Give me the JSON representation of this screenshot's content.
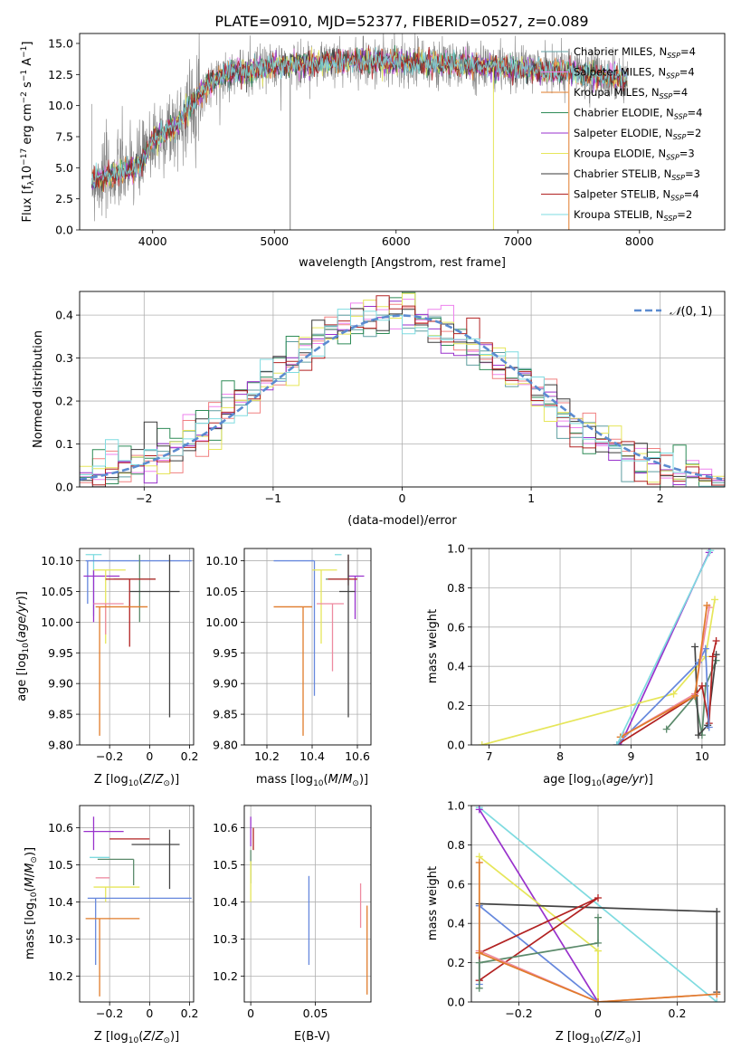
{
  "figure_title": "PLATE=0910, MJD=52377, FIBERID=0527, z=0.089",
  "palette": {
    "cm": "#5f9ea0",
    "sm": "#ee82ee",
    "km": "#f08080",
    "ce": "#2e8b57",
    "se": "#9932cc",
    "ke": "#e6e65a",
    "cs": "#3a3a3a",
    "ss": "#b22222",
    "ks": "#7fdbe0",
    "blue": "#6688dd",
    "orange": "#e07b2a",
    "pink": "#ee82ee",
    "dark": "#444444",
    "green": "#5b8a6b",
    "gray": "#808080"
  },
  "chart_data": [
    {
      "id": "spectrum",
      "type": "line",
      "title": "PLATE=0910, MJD=52377, FIBERID=0527, z=0.089",
      "xlabel": "wavelength [Angstrom, rest frame]",
      "ylabel": "Flux [f_λ 10^-17 erg cm^-2 s^-1 A^-1]",
      "xlim": [
        3400,
        8700
      ],
      "ylim": [
        0,
        15.8
      ],
      "xticks": [
        4000,
        5000,
        6000,
        7000,
        8000
      ],
      "yticks": [
        0.0,
        2.5,
        5.0,
        7.5,
        10.0,
        12.5,
        15.0
      ],
      "grid": false,
      "legend_position": "top-right",
      "legend": [
        {
          "label": "Chabrier MILES, N_SSP=4",
          "color": "#5f9ea0"
        },
        {
          "label": "Salpeter MILES, N_SSP=4",
          "color": "#ee82ee"
        },
        {
          "label": "Kroupa MILES, N_SSP=4",
          "color": "#e07b2a"
        },
        {
          "label": "Chabrier ELODIE, N_SSP=4",
          "color": "#2e8b57"
        },
        {
          "label": "Salpeter ELODIE, N_SSP=2",
          "color": "#9932cc"
        },
        {
          "label": "Kroupa ELODIE, N_SSP=3",
          "color": "#e6e65a"
        },
        {
          "label": "Chabrier STELIB, N_SSP=3",
          "color": "#3a3a3a"
        },
        {
          "label": "Salpeter STELIB, N_SSP=4",
          "color": "#b22222"
        },
        {
          "label": "Kroupa STELIB, N_SSP=2",
          "color": "#7fdbe0"
        }
      ],
      "continuum": {
        "x": [
          3500,
          3700,
          3900,
          4000,
          4200,
          4400,
          4600,
          4800,
          5000,
          5200,
          5500,
          6000,
          6500,
          7000,
          7500,
          7900
        ],
        "y": [
          3.9,
          4.5,
          5.2,
          7.2,
          8.4,
          11.2,
          12.6,
          12.8,
          13.2,
          13.3,
          13.6,
          13.5,
          13.3,
          13.0,
          12.6,
          12.1
        ]
      },
      "spikes_x": [
        5130,
        6800,
        7420
      ]
    },
    {
      "id": "residuals",
      "type": "histogram",
      "xlabel": "(data-model)/error",
      "ylabel": "Normed distribution",
      "xlim": [
        -2.5,
        2.5
      ],
      "ylim": [
        0,
        0.455
      ],
      "xticks": [
        -2,
        -1,
        0,
        1,
        2
      ],
      "yticks": [
        0.0,
        0.1,
        0.2,
        0.3,
        0.4
      ],
      "grid": true,
      "legend": [
        {
          "label": "N(0,1)",
          "style": "dashed",
          "color": "#5b8bd0"
        }
      ],
      "bin_width": 0.1
    },
    {
      "id": "age-vs-Z",
      "type": "errorbar",
      "xlabel": "Z [log10(Z/Z⊙)]",
      "ylabel": "age [log10(age/yr)]",
      "xlim": [
        -0.35,
        0.22
      ],
      "ylim": [
        9.8,
        10.12
      ],
      "xticks": [
        -0.2,
        0.0,
        0.2
      ],
      "yticks": [
        9.8,
        9.85,
        9.9,
        9.95,
        10.0,
        10.05,
        10.1
      ],
      "grid": true,
      "points": [
        {
          "x": -0.28,
          "y": 10.11,
          "xerr": [
            0.04,
            0.04
          ],
          "yerr": [
            0.1,
            0.0
          ],
          "color": "#7fdbe0"
        },
        {
          "x": -0.31,
          "y": 10.1,
          "xerr": [
            0.01,
            0.52
          ],
          "yerr": [
            0.07,
            0.0
          ],
          "color": "#6688dd"
        },
        {
          "x": -0.28,
          "y": 10.075,
          "xerr": [
            0.05,
            0.13
          ],
          "yerr": [
            0.075,
            0.01
          ],
          "color": "#9932cc"
        },
        {
          "x": -0.22,
          "y": 10.085,
          "xerr": [
            0.06,
            0.1
          ],
          "yerr": [
            0.12,
            0.0
          ],
          "color": "#e6e65a"
        },
        {
          "x": -0.05,
          "y": 10.07,
          "xerr": [
            0.13,
            0.08
          ],
          "yerr": [
            0.07,
            0.04
          ],
          "color": "#5b8a6b"
        },
        {
          "x": -0.1,
          "y": 10.07,
          "xerr": [
            0.12,
            0.13
          ],
          "yerr": [
            0.11,
            0.0
          ],
          "color": "#b22222"
        },
        {
          "x": 0.1,
          "y": 10.05,
          "xerr": [
            0.2,
            0.05
          ],
          "yerr": [
            0.205,
            0.06
          ],
          "color": "#444444"
        },
        {
          "x": -0.22,
          "y": 10.03,
          "xerr": [
            0.06,
            0.09
          ],
          "yerr": [
            0.05,
            0.0
          ],
          "color": "#ee8aa0"
        },
        {
          "x": -0.25,
          "y": 10.025,
          "xerr": [
            0.02,
            0.24
          ],
          "yerr": [
            0.21,
            0.0
          ],
          "color": "#e07b2a"
        }
      ]
    },
    {
      "id": "age-vs-mass",
      "type": "errorbar",
      "xlabel": "mass [log10(M/M⊙)]",
      "ylabel": "",
      "xlim": [
        10.1,
        10.66
      ],
      "ylim": [
        9.8,
        10.12
      ],
      "xticks": [
        10.2,
        10.4,
        10.6
      ],
      "yticks": [
        9.8,
        9.85,
        9.9,
        9.95,
        10.0,
        10.05,
        10.1
      ],
      "grid": true,
      "points": [
        {
          "x": 10.5,
          "y": 10.11,
          "xerr": [
            0.0,
            0.03
          ],
          "yerr": [
            0.0,
            0.0
          ],
          "color": "#7fdbe0"
        },
        {
          "x": 10.41,
          "y": 10.1,
          "xerr": [
            0.18,
            0.0
          ],
          "yerr": [
            0.22,
            0.0
          ],
          "color": "#6688dd"
        },
        {
          "x": 10.59,
          "y": 10.075,
          "xerr": [
            0.03,
            0.04
          ],
          "yerr": [
            0.07,
            0.0
          ],
          "color": "#9932cc"
        },
        {
          "x": 10.44,
          "y": 10.085,
          "xerr": [
            0.04,
            0.07
          ],
          "yerr": [
            0.12,
            0.0
          ],
          "color": "#e6e65a"
        },
        {
          "x": 10.52,
          "y": 10.07,
          "xerr": [
            0.06,
            0.05
          ],
          "yerr": [
            0.0,
            0.0
          ],
          "color": "#5b8a6b"
        },
        {
          "x": 10.56,
          "y": 10.07,
          "xerr": [
            0.09,
            0.04
          ],
          "yerr": [
            0.01,
            0.04
          ],
          "color": "#b22222"
        },
        {
          "x": 10.56,
          "y": 10.05,
          "xerr": [
            0.04,
            0.03
          ],
          "yerr": [
            0.205,
            0.06
          ],
          "color": "#444444"
        },
        {
          "x": 10.49,
          "y": 10.03,
          "xerr": [
            0.07,
            0.05
          ],
          "yerr": [
            0.11,
            0.0
          ],
          "color": "#ee8aa0"
        },
        {
          "x": 10.36,
          "y": 10.025,
          "xerr": [
            0.13,
            0.04
          ],
          "yerr": [
            0.21,
            0.0
          ],
          "color": "#e07b2a"
        }
      ]
    },
    {
      "id": "weight-vs-age",
      "type": "line",
      "xlabel": "age [log10(age/yr)]",
      "ylabel": "mass weight",
      "xlim": [
        6.75,
        10.32
      ],
      "ylim": [
        0,
        1
      ],
      "xticks": [
        7,
        8,
        9,
        10
      ],
      "yticks": [
        0.0,
        0.2,
        0.4,
        0.6,
        0.8,
        1.0
      ],
      "grid": true,
      "series": [
        {
          "color": "#5b8a6b",
          "x": [
            9.5,
            9.9,
            10.0,
            10.05,
            10.2
          ],
          "y": [
            0.08,
            0.25,
            0.05,
            0.3,
            0.43
          ]
        },
        {
          "color": "#9932cc",
          "x": [
            8.85,
            10.1
          ],
          "y": [
            0.0,
            0.98
          ]
        },
        {
          "color": "#e6e65a",
          "x": [
            6.9,
            9.6,
            10.05,
            10.18
          ],
          "y": [
            0.0,
            0.26,
            0.45,
            0.74
          ]
        },
        {
          "color": "#444444",
          "x": [
            9.9,
            9.95,
            10.08,
            10.2
          ],
          "y": [
            0.5,
            0.05,
            0.1,
            0.46
          ]
        },
        {
          "color": "#b22222",
          "x": [
            8.8,
            9.9,
            10.0,
            10.1,
            10.15,
            10.2
          ],
          "y": [
            0.0,
            0.25,
            0.3,
            0.11,
            0.45,
            0.53
          ]
        },
        {
          "color": "#6688dd",
          "x": [
            8.8,
            9.95,
            10.05,
            10.1
          ],
          "y": [
            0.0,
            0.42,
            0.49,
            0.09
          ]
        },
        {
          "color": "#ee8aa0",
          "x": [
            8.9,
            9.9,
            10.1
          ],
          "y": [
            0.05,
            0.26,
            0.7
          ]
        },
        {
          "color": "#e07b2a",
          "x": [
            8.85,
            9.9,
            10.07
          ],
          "y": [
            0.04,
            0.25,
            0.71
          ]
        },
        {
          "color": "#7fdbe0",
          "x": [
            8.8,
            10.12
          ],
          "y": [
            0.0,
            0.99
          ]
        }
      ]
    },
    {
      "id": "mass-vs-Z",
      "type": "errorbar",
      "xlabel": "Z [log10(Z/Z⊙)]",
      "ylabel": "mass [log10(M/M⊙)]",
      "xlim": [
        -0.35,
        0.22
      ],
      "ylim": [
        10.13,
        10.66
      ],
      "xticks": [
        -0.2,
        0.0,
        0.2
      ],
      "yticks": [
        10.2,
        10.3,
        10.4,
        10.5,
        10.6
      ],
      "grid": true,
      "points": [
        {
          "x": -0.28,
          "y": 10.59,
          "xerr": [
            0.05,
            0.15
          ],
          "yerr": [
            0.05,
            0.04
          ],
          "color": "#9932cc"
        },
        {
          "x": -0.1,
          "y": 10.57,
          "xerr": [
            0.1,
            0.1
          ],
          "yerr": [
            0.0,
            0.0
          ],
          "color": "#b22222"
        },
        {
          "x": 0.1,
          "y": 10.555,
          "xerr": [
            0.19,
            0.05
          ],
          "yerr": [
            0.12,
            0.04
          ],
          "color": "#444444"
        },
        {
          "x": -0.2,
          "y": 10.52,
          "xerr": [
            0.1,
            0.0
          ],
          "yerr": [
            0.0,
            0.0
          ],
          "color": "#7fdbe0"
        },
        {
          "x": -0.08,
          "y": 10.515,
          "xerr": [
            0.18,
            0.0
          ],
          "yerr": [
            0.07,
            0.0
          ],
          "color": "#5b8a6b"
        },
        {
          "x": -0.2,
          "y": 10.465,
          "xerr": [
            0.07,
            0.0
          ],
          "yerr": [
            0.0,
            0.0
          ],
          "color": "#ee8aa0"
        },
        {
          "x": -0.22,
          "y": 10.44,
          "xerr": [
            0.06,
            0.17
          ],
          "yerr": [
            0.04,
            0.0
          ],
          "color": "#e6e65a"
        },
        {
          "x": -0.27,
          "y": 10.41,
          "xerr": [
            0.04,
            0.48
          ],
          "yerr": [
            0.18,
            0.0
          ],
          "color": "#6688dd"
        },
        {
          "x": -0.25,
          "y": 10.355,
          "xerr": [
            0.07,
            0.2
          ],
          "yerr": [
            0.21,
            0.0
          ],
          "color": "#e07b2a"
        }
      ]
    },
    {
      "id": "mass-vs-EBV",
      "type": "errorbar",
      "xlabel": "E(B-V)",
      "ylabel": "",
      "xlim": [
        -0.005,
        0.093
      ],
      "ylim": [
        10.13,
        10.66
      ],
      "xticks": [
        0.0,
        0.05
      ],
      "yticks": [
        10.2,
        10.3,
        10.4,
        10.5,
        10.6
      ],
      "grid": true,
      "points": [
        {
          "x": 0.0,
          "y": 10.59,
          "xerr": [
            0,
            0
          ],
          "yerr": [
            0.04,
            0.04
          ],
          "color": "#9932cc"
        },
        {
          "x": 0.002,
          "y": 10.57,
          "xerr": [
            0,
            0
          ],
          "yerr": [
            0.03,
            0.03
          ],
          "color": "#b22222"
        },
        {
          "x": 0.0,
          "y": 10.5,
          "xerr": [
            0,
            0
          ],
          "yerr": [
            0.05,
            0.04
          ],
          "color": "#5b8a6b"
        },
        {
          "x": 0.0,
          "y": 10.44,
          "xerr": [
            0,
            0
          ],
          "yerr": [
            0.04,
            0.07
          ],
          "color": "#e6e65a"
        },
        {
          "x": 0.045,
          "y": 10.35,
          "xerr": [
            0,
            0
          ],
          "yerr": [
            0.12,
            0.12
          ],
          "color": "#6688dd"
        },
        {
          "x": 0.085,
          "y": 10.39,
          "xerr": [
            0,
            0
          ],
          "yerr": [
            0.06,
            0.06
          ],
          "color": "#ee8aa0"
        },
        {
          "x": 0.09,
          "y": 10.27,
          "xerr": [
            0,
            0
          ],
          "yerr": [
            0.12,
            0.12
          ],
          "color": "#e07b2a"
        }
      ]
    },
    {
      "id": "weight-vs-Z",
      "type": "line",
      "xlabel": "Z [log10(Z/Z⊙)]",
      "ylabel": "mass weight",
      "xlim": [
        -0.32,
        0.32
      ],
      "ylim": [
        0,
        1
      ],
      "xticks": [
        -0.2,
        0.0,
        0.2
      ],
      "yticks": [
        0.0,
        0.2,
        0.4,
        0.6,
        0.8,
        1.0
      ],
      "grid": true,
      "series": [
        {
          "color": "#7fdbe0",
          "x": [
            -0.3,
            0.3
          ],
          "y": [
            0.99,
            0.0
          ]
        },
        {
          "color": "#9932cc",
          "x": [
            -0.3,
            0.0
          ],
          "y": [
            0.98,
            0.0
          ]
        },
        {
          "color": "#e6e65a",
          "x": [
            -0.3,
            0.0,
            0.0
          ],
          "y": [
            0.74,
            0.26,
            0.0
          ]
        },
        {
          "color": "#444444",
          "x": [
            -0.3,
            0.3,
            0.3
          ],
          "y": [
            0.5,
            0.46,
            0.05
          ]
        },
        {
          "color": "#6688dd",
          "x": [
            -0.3,
            -0.3,
            0.0
          ],
          "y": [
            0.09,
            0.49,
            0.0
          ]
        },
        {
          "color": "#b22222",
          "x": [
            -0.3,
            -0.3,
            0.0,
            -0.3
          ],
          "y": [
            0.11,
            0.25,
            0.53,
            0.11
          ]
        },
        {
          "color": "#5b8a6b",
          "x": [
            -0.3,
            -0.3,
            0.0,
            0.0
          ],
          "y": [
            0.07,
            0.2,
            0.3,
            0.43
          ]
        },
        {
          "color": "#ee8aa0",
          "x": [
            -0.3,
            0.0,
            0.3
          ],
          "y": [
            0.26,
            0.0,
            0.04
          ]
        },
        {
          "color": "#e07b2a",
          "x": [
            -0.3,
            -0.3,
            0.0,
            0.3
          ],
          "y": [
            0.71,
            0.25,
            0.0,
            0.04
          ]
        }
      ]
    }
  ]
}
